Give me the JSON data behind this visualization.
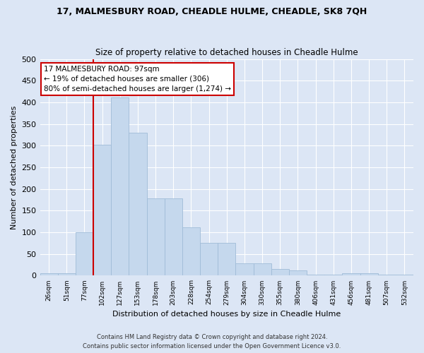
{
  "title": "17, MALMESBURY ROAD, CHEADLE HULME, CHEADLE, SK8 7QH",
  "subtitle": "Size of property relative to detached houses in Cheadle Hulme",
  "xlabel": "Distribution of detached houses by size in Cheadle Hulme",
  "ylabel": "Number of detached properties",
  "categories": [
    "26sqm",
    "51sqm",
    "77sqm",
    "102sqm",
    "127sqm",
    "153sqm",
    "178sqm",
    "203sqm",
    "228sqm",
    "254sqm",
    "279sqm",
    "304sqm",
    "330sqm",
    "355sqm",
    "380sqm",
    "406sqm",
    "431sqm",
    "456sqm",
    "481sqm",
    "507sqm",
    "532sqm"
  ],
  "values": [
    5,
    5,
    100,
    302,
    412,
    330,
    178,
    178,
    112,
    75,
    75,
    28,
    28,
    15,
    12,
    3,
    3,
    5,
    5,
    2,
    2
  ],
  "bar_color": "#c5d8ed",
  "bar_edge_color": "#a0bcd8",
  "marker_color": "#cc0000",
  "annotation_text": "17 MALMESBURY ROAD: 97sqm\n← 19% of detached houses are smaller (306)\n80% of semi-detached houses are larger (1,274) →",
  "annotation_box_color": "#ffffff",
  "annotation_box_edge_color": "#cc0000",
  "footer_line1": "Contains HM Land Registry data © Crown copyright and database right 2024.",
  "footer_line2": "Contains public sector information licensed under the Open Government Licence v3.0.",
  "background_color": "#dce6f5",
  "plot_background_color": "#dce6f5",
  "grid_color": "#ffffff",
  "ylim": [
    0,
    500
  ],
  "yticks": [
    0,
    50,
    100,
    150,
    200,
    250,
    300,
    350,
    400,
    450,
    500
  ]
}
